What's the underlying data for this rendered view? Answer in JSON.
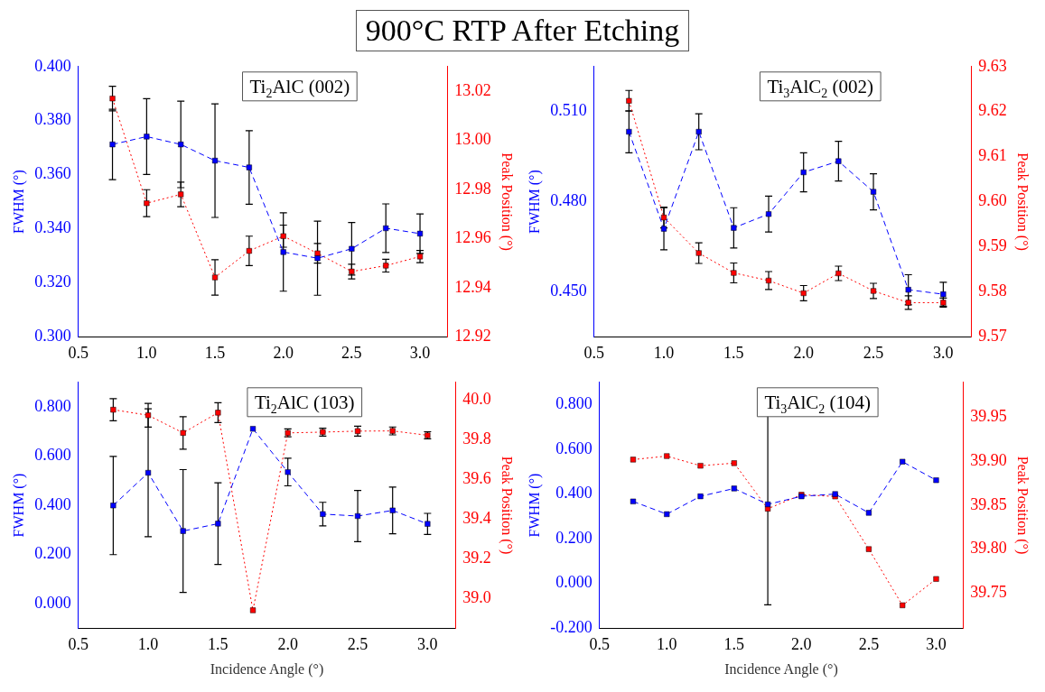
{
  "chart_data": [
    {
      "type": "line",
      "title": "900°C  RTP After Etching",
      "ylabel": "FWHM (°)",
      "y2label": "Peak Position (°)",
      "marker": "square",
      "annotations": [
        "Ti$_{2}$AlC (002)"
      ],
      "x": [
        0.75,
        1.0,
        1.25,
        1.5,
        1.75,
        2.0,
        2.25,
        2.5,
        2.75,
        3.0
      ],
      "xlim": [
        0.5,
        3.2
      ],
      "xticks": [
        0.5,
        {
          "value": 1,
          "label": "1.0"
        },
        1.5,
        {
          "value": 2,
          "label": "2.0"
        },
        2.5,
        {
          "value": 3,
          "label": "3.0"
        }
      ],
      "ylim": [
        0.3,
        0.4
      ],
      "yticks": [
        {
          "value": 0.3,
          "label": "0.300"
        },
        {
          "value": 0.32,
          "label": "0.320"
        },
        {
          "value": 0.34,
          "label": "0.340"
        },
        {
          "value": 0.36,
          "label": "0.360"
        },
        {
          "value": 0.38,
          "label": "0.380"
        },
        {
          "value": 0.4,
          "label": "0.400"
        }
      ],
      "y2lim": [
        12.92,
        13.03
      ],
      "y2ticks": [
        12.92,
        12.94,
        12.96,
        12.98,
        {
          "value": 13,
          "label": "13.00"
        },
        13.02
      ],
      "series": [
        {
          "color": "#0000ff",
          "line_style": "dashed",
          "values": [
            0.3712,
            0.3741,
            0.3712,
            0.3652,
            0.3627,
            0.3314,
            0.3291,
            0.3326,
            0.3402,
            0.3382
          ],
          "errors": [
            0.013,
            0.014,
            0.016,
            0.021,
            0.0136,
            0.0145,
            0.0137,
            0.0097,
            0.009,
            0.0073
          ]
        },
        {
          "color": "#ff0000",
          "line_style": "dotted",
          "axis": "y2",
          "values": [
            13.017,
            12.9744,
            12.978,
            12.9442,
            12.955,
            12.961,
            12.954,
            12.9466,
            12.949,
            12.9527
          ],
          "errors": [
            0.005,
            0.0055,
            0.005,
            0.0072,
            0.006,
            0.0045,
            0.004,
            0.003,
            0.0026,
            0.0025
          ]
        }
      ]
    },
    {
      "type": "line",
      "ylabel": "FWHM (°)",
      "y2label": "Peak Position (°)",
      "marker": "square",
      "annotations": [
        "Ti$_{3}$AlC$_{2}$ (002)"
      ],
      "x": [
        0.75,
        1.0,
        1.25,
        1.5,
        1.75,
        2.0,
        2.25,
        2.5,
        2.75,
        3.0
      ],
      "xlim": [
        0.5,
        3.2
      ],
      "xticks": [
        0.5,
        {
          "value": 1,
          "label": "1.0"
        },
        1.5,
        {
          "value": 2,
          "label": "2.0"
        },
        2.5,
        {
          "value": 3,
          "label": "3.0"
        }
      ],
      "ylim": [
        0.435,
        0.525
      ],
      "yticks": [
        {
          "value": 0.45,
          "label": "0.450"
        },
        {
          "value": 0.48,
          "label": "0.480"
        },
        {
          "value": 0.51,
          "label": "0.510"
        }
      ],
      "y2lim": [
        9.57,
        9.63
      ],
      "y2ticks": [
        9.57,
        9.58,
        9.59,
        {
          "value": 9.6,
          "label": "9.60"
        },
        9.61,
        9.62,
        9.63
      ],
      "series": [
        {
          "color": "#0000ff",
          "line_style": "dashed",
          "values": [
            0.5033,
            0.471,
            0.5033,
            0.4713,
            0.4759,
            0.4898,
            0.4935,
            0.4833,
            0.4507,
            0.4492
          ],
          "errors": [
            0.007,
            0.007,
            0.006,
            0.0067,
            0.006,
            0.0065,
            0.0066,
            0.006,
            0.005,
            0.004
          ]
        },
        {
          "color": "#ff0000",
          "line_style": "dotted",
          "axis": "y2",
          "values": [
            9.6224,
            9.5965,
            9.5886,
            9.5842,
            9.5825,
            9.5797,
            9.5841,
            9.5802,
            9.5776,
            9.5776
          ],
          "errors": [
            0.0023,
            0.0023,
            0.0023,
            0.0022,
            0.002,
            0.0017,
            0.0016,
            0.0017,
            0.0015,
            0.001
          ]
        }
      ]
    },
    {
      "type": "line",
      "xlabel": "Incidence Angle (°)",
      "ylabel": "FWHM (°)",
      "y2label": "Peak Position (°)",
      "marker": "square",
      "annotations": [
        "Ti$_{2}$AlC (103)"
      ],
      "x": [
        0.75,
        1.0,
        1.25,
        1.5,
        1.75,
        2.0,
        2.25,
        2.5,
        2.75,
        3.0
      ],
      "xlim": [
        0.5,
        3.2
      ],
      "xticks": [
        0.5,
        {
          "value": 1,
          "label": "1.0"
        },
        1.5,
        {
          "value": 2,
          "label": "2.0"
        },
        2.5,
        {
          "value": 3,
          "label": "3.0"
        }
      ],
      "ylim": [
        -0.1,
        0.9
      ],
      "yticks": [
        {
          "value": 0,
          "label": "0.000"
        },
        {
          "value": 0.2,
          "label": "0.200"
        },
        {
          "value": 0.4,
          "label": "0.400"
        },
        {
          "value": 0.6,
          "label": "0.600"
        },
        {
          "value": 0.8,
          "label": "0.800"
        }
      ],
      "y2lim": [
        38.85,
        40.09
      ],
      "y2ticks": [
        {
          "value": 39,
          "label": "39.0"
        },
        39.2,
        39.4,
        39.6,
        39.8,
        {
          "value": 40,
          "label": "40.0"
        }
      ],
      "series": [
        {
          "color": "#0000ff",
          "line_style": "dashed",
          "values": [
            0.399,
            0.532,
            0.295,
            0.325,
            0.711,
            0.535,
            0.364,
            0.356,
            0.379,
            0.324
          ],
          "errors": [
            0.2,
            0.26,
            0.25,
            0.166,
            null,
            0.056,
            0.048,
            0.104,
            0.095,
            0.043
          ]
        },
        {
          "color": "#ff0000",
          "line_style": "dotted",
          "axis": "y2",
          "values": [
            39.952,
            39.924,
            39.835,
            39.937,
            38.94,
            39.835,
            39.839,
            39.844,
            39.845,
            39.823
          ],
          "errors": [
            0.056,
            0.06,
            0.082,
            0.05,
            null,
            0.02,
            0.02,
            0.025,
            0.02,
            0.018
          ]
        }
      ]
    },
    {
      "type": "line",
      "xlabel": "Incidence Angle (°)",
      "ylabel": "FWHM (°)",
      "y2label": "Peak Position (°)",
      "marker": "square",
      "annotations": [
        "Ti$_{3}$AlC$_{2}$ (104)"
      ],
      "x": [
        0.75,
        1.0,
        1.25,
        1.5,
        1.75,
        2.0,
        2.25,
        2.5,
        2.75,
        3.0
      ],
      "xlim": [
        0.5,
        3.2
      ],
      "xticks": [
        0.5,
        {
          "value": 1,
          "label": "1.0"
        },
        1.5,
        {
          "value": 2,
          "label": "2.0"
        },
        2.5,
        {
          "value": 3,
          "label": "3.0"
        }
      ],
      "ylim": [
        -0.2,
        0.9
      ],
      "yticks": [
        {
          "value": -0.2,
          "label": "-0.200"
        },
        {
          "value": 0,
          "label": "0.000"
        },
        {
          "value": 0.2,
          "label": "0.200"
        },
        {
          "value": 0.4,
          "label": "0.400"
        },
        {
          "value": 0.6,
          "label": "0.600"
        },
        {
          "value": 0.8,
          "label": "0.800"
        }
      ],
      "y2lim": [
        39.71,
        39.99
      ],
      "y2ticks": [
        39.75,
        {
          "value": 39.8,
          "label": "39.80"
        },
        39.85,
        {
          "value": 39.9,
          "label": "39.90"
        },
        39.95
      ],
      "series": [
        {
          "color": "#0000ff",
          "line_style": "dashed",
          "values": [
            0.367,
            0.31,
            0.39,
            0.425,
            0.354,
            0.39,
            0.4,
            0.316,
            0.545,
            0.462
          ],
          "errors": [
            null,
            null,
            null,
            null,
            0.45,
            null,
            null,
            null,
            null,
            null
          ]
        },
        {
          "color": "#ff0000",
          "line_style": "dotted",
          "axis": "y2",
          "values": [
            39.902,
            39.906,
            39.895,
            39.898,
            39.846,
            39.862,
            39.86,
            39.8,
            39.736,
            39.766
          ]
        }
      ]
    }
  ]
}
